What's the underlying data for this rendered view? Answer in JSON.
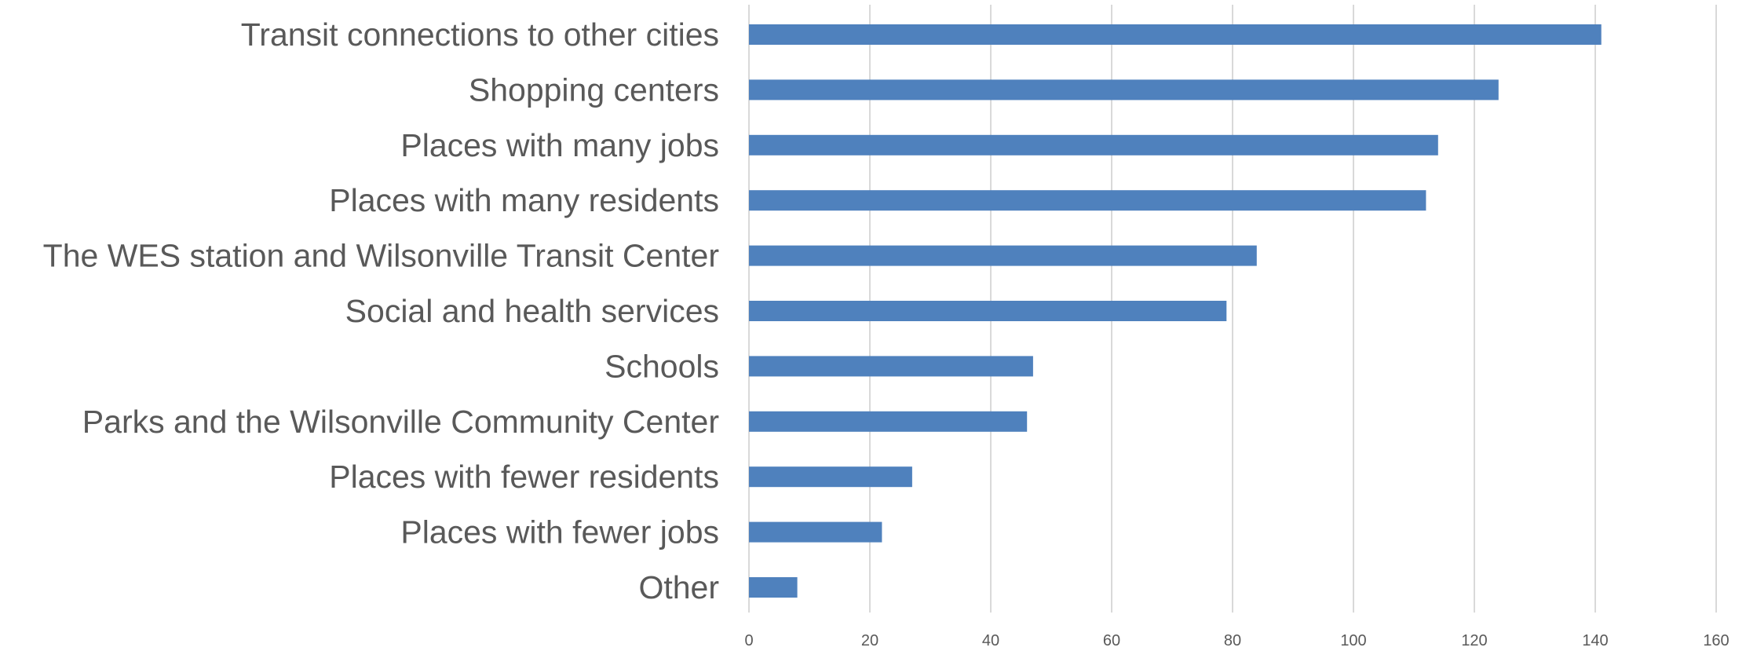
{
  "chart_data": {
    "type": "bar",
    "orientation": "horizontal",
    "title": "",
    "xlabel": "",
    "ylabel": "",
    "categories": [
      "Transit connections to other cities",
      "Shopping centers",
      "Places with many jobs",
      "Places with many residents",
      "The WES station and Wilsonville Transit Center",
      "Social and health services",
      "Schools",
      "Parks and the Wilsonville Community Center",
      "Places with fewer residents",
      "Places with fewer jobs",
      "Other"
    ],
    "values": [
      141,
      124,
      114,
      112,
      84,
      79,
      47,
      46,
      27,
      22,
      8
    ],
    "xlim": [
      0,
      160
    ],
    "xticks": [
      0,
      20,
      40,
      60,
      80,
      100,
      120,
      140,
      160
    ],
    "grid": "vertical",
    "legend": "none",
    "bar_color": "#4f81bd"
  }
}
